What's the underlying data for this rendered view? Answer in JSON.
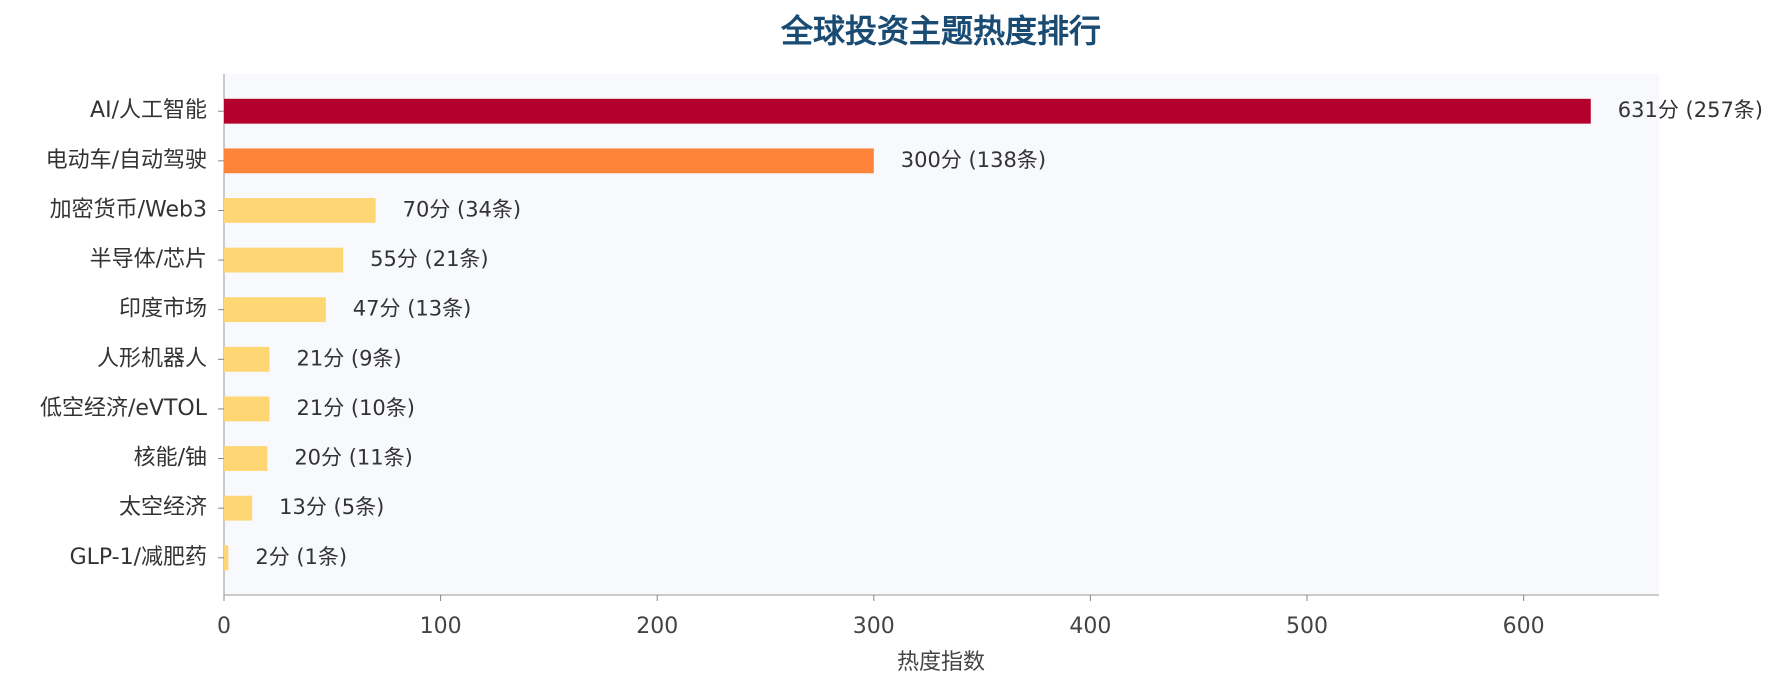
{
  "chart_data": {
    "type": "bar",
    "orientation": "horizontal",
    "title": "全球投资主题热度排行",
    "x_label": "热度指数",
    "categories": [
      "AI/人工智能",
      "电动车/自动驾驶",
      "加密货币/Web3",
      "半导体/芯片",
      "印度市场",
      "人形机器人",
      "低空经济/eVTOL",
      "核能/铀",
      "太空经济",
      "GLP-1/减肥药"
    ],
    "values": [
      631,
      300,
      70,
      55,
      47,
      21,
      21,
      20,
      13,
      2
    ],
    "value_labels": [
      "631分 (257条)",
      "300分 (138条)",
      "70分 (34条)",
      "55分 (21条)",
      "47分 (13条)",
      "21分 (9条)",
      "21分 (10条)",
      "20分 (11条)",
      "13分 (5条)",
      "2分 (1条)"
    ],
    "colors": [
      "#b3002d",
      "#fd8439",
      "#fed674",
      "#fed674",
      "#fed674",
      "#fed674",
      "#fed674",
      "#fed674",
      "#fed674",
      "#fed674"
    ],
    "xlim": [
      0,
      662.5
    ],
    "xticks": [
      0,
      100,
      200,
      300,
      400,
      500,
      600
    ]
  }
}
